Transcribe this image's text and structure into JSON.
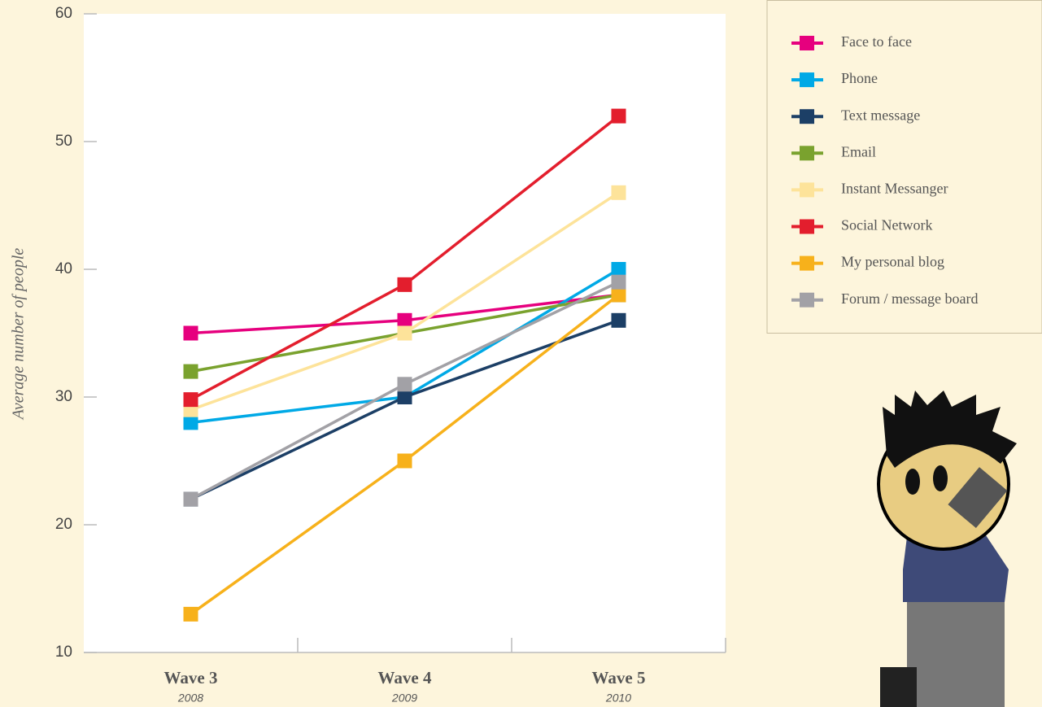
{
  "chart_data": {
    "type": "line",
    "ylabel": "Average number of people",
    "categories": [
      "Wave 3",
      "Wave 4",
      "Wave 5"
    ],
    "category_years": [
      "2008",
      "2009",
      "2010"
    ],
    "ylim": [
      10,
      60
    ],
    "yticks": [
      10,
      20,
      30,
      40,
      50,
      60
    ],
    "series": [
      {
        "name": "Face to face",
        "color": "#e6007e",
        "values": [
          35,
          36,
          38
        ]
      },
      {
        "name": "Phone",
        "color": "#00a9e6",
        "values": [
          28,
          30,
          40
        ]
      },
      {
        "name": "Text message",
        "color": "#1c3f66",
        "values": [
          22,
          30,
          36
        ]
      },
      {
        "name": "Email",
        "color": "#7aa22e",
        "values": [
          32,
          35,
          38
        ]
      },
      {
        "name": "Instant Messanger",
        "color": "#fde39a",
        "values": [
          29,
          35,
          46
        ]
      },
      {
        "name": "Social Network",
        "color": "#e31e2d",
        "values": [
          29.8,
          38.8,
          52
        ]
      },
      {
        "name": "My personal blog",
        "color": "#f7b11b",
        "values": [
          13,
          25,
          38
        ]
      },
      {
        "name": "Forum / message board",
        "color": "#a2a1a6",
        "values": [
          22,
          31,
          39
        ]
      }
    ]
  }
}
